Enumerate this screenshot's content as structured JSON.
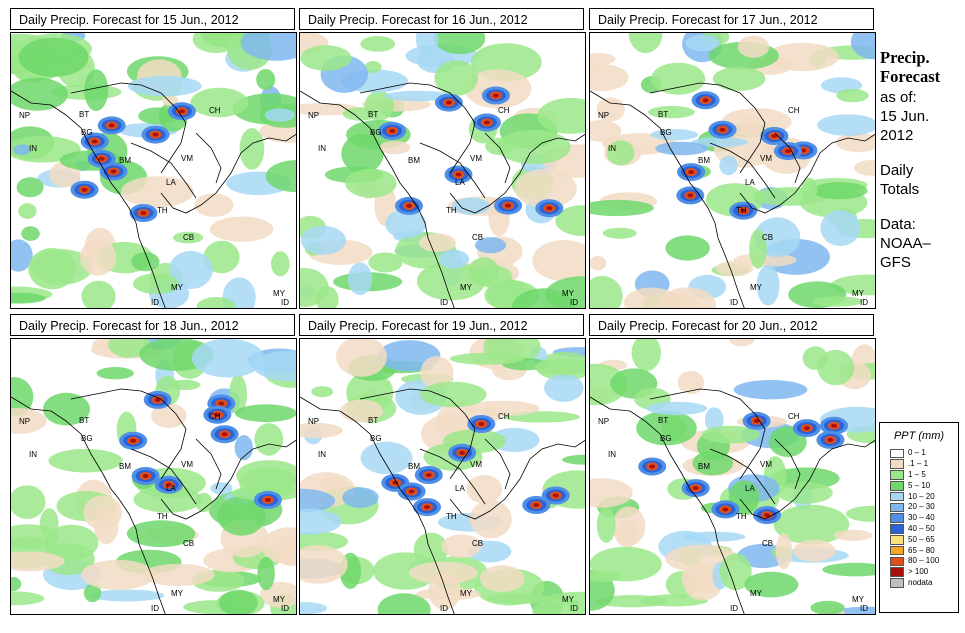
{
  "panels": [
    {
      "title": "Daily Precip. Forecast for  15 Jun., 2012",
      "seed": 15
    },
    {
      "title": "Daily Precip. Forecast for  16 Jun., 2012",
      "seed": 16
    },
    {
      "title": "Daily Precip. Forecast for  17 Jun., 2012",
      "seed": 17
    },
    {
      "title": "Daily Precip. Forecast for  18 Jun., 2012",
      "seed": 18
    },
    {
      "title": "Daily Precip. Forecast for  19 Jun., 2012",
      "seed": 19
    },
    {
      "title": "Daily Precip. Forecast for  20 Jun., 2012",
      "seed": 20
    }
  ],
  "country_labels": [
    "NP",
    "BT",
    "BG",
    "IN",
    "BM",
    "CH",
    "VM",
    "LA",
    "TH",
    "CB",
    "MY",
    "ID",
    "MY",
    "ID"
  ],
  "sidebar": {
    "title_line1": "Precip.",
    "title_line2": "Forecast",
    "asof_line1": "as of:",
    "asof_line2": "15 Jun.",
    "asof_line3": "2012",
    "daily_line1": "Daily",
    "daily_line2": "Totals",
    "data_line1": "Data:",
    "data_line2": "NOAA–",
    "data_line3": "GFS"
  },
  "legend": {
    "title": "PPT (mm)",
    "items": [
      {
        "label": "0 – 1",
        "color": "#ffffff"
      },
      {
        "label": ".1 – 1",
        "color": "#f2dcc4"
      },
      {
        "label": "1 – 5",
        "color": "#9be88a"
      },
      {
        "label": "5 – 10",
        "color": "#6ed86b"
      },
      {
        "label": "10 – 20",
        "color": "#a6d8f5"
      },
      {
        "label": "20 – 30",
        "color": "#7fb7ee"
      },
      {
        "label": "30 – 40",
        "color": "#4f8fe6"
      },
      {
        "label": "40 – 50",
        "color": "#2a62d8"
      },
      {
        "label": "50 – 65",
        "color": "#fbe17a"
      },
      {
        "label": "65 – 80",
        "color": "#f5a623"
      },
      {
        "label": "80 – 100",
        "color": "#e0501c"
      },
      {
        "label": "> 100",
        "color": "#a8120c"
      },
      {
        "label": "nodata",
        "color": "#c0c0c0"
      }
    ]
  }
}
